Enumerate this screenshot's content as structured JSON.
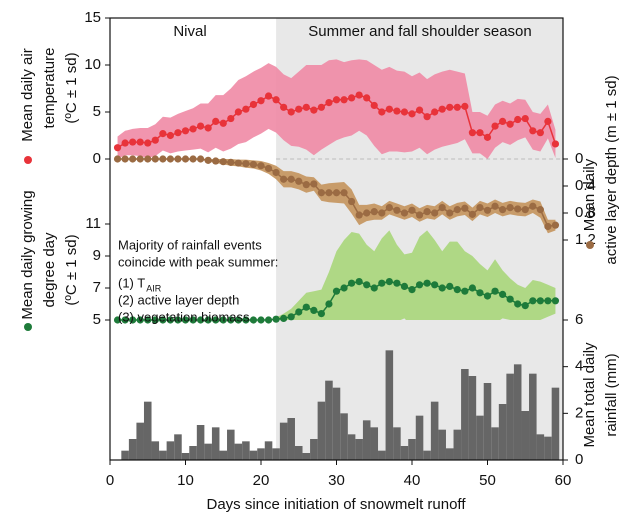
{
  "x_axis": {
    "label": "Days since initiation of snowmelt runoff",
    "xlim": [
      0,
      60
    ],
    "xticks": [
      0,
      10,
      20,
      30,
      40,
      50,
      60
    ]
  },
  "seasons": [
    {
      "label": "Nival"
    },
    {
      "label": "Summer and fall shoulder season",
      "from": 22
    }
  ],
  "annotation": {
    "lines": [
      "Majority of rainfall events",
      "coincide with peak summer:",
      "(1) T",
      "(2) active layer depth",
      "(3) vegetation biomass"
    ],
    "subscript": "AIR"
  },
  "chart_data": [
    {
      "type": "line",
      "axis_label": [
        "Mean daily air",
        "temperature",
        "(ºC ± 1 sd)"
      ],
      "side": "left",
      "color": "#e8333a",
      "band_color": "#f08aa5",
      "ylim": [
        0,
        15
      ],
      "yticks": [
        0,
        5,
        10,
        15
      ],
      "x": [
        1,
        2,
        3,
        4,
        5,
        6,
        7,
        8,
        9,
        10,
        11,
        12,
        13,
        14,
        15,
        16,
        17,
        18,
        19,
        20,
        21,
        22,
        23,
        24,
        25,
        26,
        27,
        28,
        29,
        30,
        31,
        32,
        33,
        34,
        35,
        36,
        37,
        38,
        39,
        40,
        41,
        42,
        43,
        44,
        45,
        46,
        47,
        48,
        49,
        50,
        51,
        52,
        53,
        54,
        55,
        56,
        57,
        58,
        59
      ],
      "values": [
        1.2,
        1.7,
        1.8,
        1.8,
        1.7,
        2,
        2.7,
        2.5,
        2.8,
        3,
        3.2,
        3.5,
        3.3,
        4,
        3.8,
        4.3,
        5,
        5.3,
        5.8,
        6.2,
        6.7,
        6.3,
        5.5,
        5,
        5.3,
        5.5,
        5.2,
        5.5,
        6,
        6.3,
        6.3,
        6.5,
        6.8,
        6.5,
        5.7,
        5,
        5.3,
        5.1,
        5,
        4.8,
        5.2,
        4.5,
        5,
        5.3,
        5.5,
        5.5,
        5.6,
        2.8,
        2.8,
        2.3,
        3.5,
        4,
        3.7,
        4.2,
        4.3,
        3,
        2.8,
        4,
        1.6
      ],
      "sd": [
        1.2,
        1.3,
        1.4,
        1.5,
        1.6,
        1.7,
        1.8,
        1.9,
        2,
        2.1,
        2.2,
        2.4,
        2.6,
        2.8,
        3,
        3.2,
        3.4,
        3.5,
        3.5,
        3.5,
        3.5,
        3.5,
        3.5,
        3.6,
        4,
        4.5,
        4.8,
        4.5,
        4.5,
        4.3,
        4,
        4,
        3.8,
        4,
        4.3,
        4.5,
        4.5,
        4.3,
        4.3,
        4,
        4,
        4,
        4,
        4,
        4,
        3.8,
        3.5,
        2.2,
        2.2,
        2.3,
        2.3,
        2.2,
        2.2,
        2.2,
        2,
        2,
        2,
        1.8,
        1.5
      ]
    },
    {
      "type": "line",
      "axis_label": [
        "Mean daily",
        "active layer depth (m ± 1 sd)"
      ],
      "side": "right",
      "color": "#9b6b43",
      "band_color": "#c4935c",
      "ylim": [
        1.2,
        0
      ],
      "yticks": [
        0,
        0.4,
        0.8,
        1.2
      ],
      "x": [
        1,
        2,
        3,
        4,
        5,
        6,
        7,
        8,
        9,
        10,
        11,
        12,
        13,
        14,
        15,
        16,
        17,
        18,
        19,
        20,
        21,
        22,
        23,
        24,
        25,
        26,
        27,
        28,
        29,
        30,
        31,
        32,
        33,
        34,
        35,
        36,
        37,
        38,
        39,
        40,
        41,
        42,
        43,
        44,
        45,
        46,
        47,
        48,
        49,
        50,
        51,
        52,
        53,
        54,
        55,
        56,
        57,
        58,
        59
      ],
      "values": [
        0,
        0,
        0,
        0,
        0,
        0,
        0,
        0,
        0,
        0,
        0,
        0,
        0.02,
        0.03,
        0.04,
        0.05,
        0.06,
        0.07,
        0.08,
        0.1,
        0.14,
        0.2,
        0.3,
        0.3,
        0.33,
        0.38,
        0.37,
        0.5,
        0.5,
        0.5,
        0.5,
        0.63,
        0.83,
        0.8,
        0.78,
        0.8,
        0.72,
        0.76,
        0.8,
        0.76,
        0.83,
        0.78,
        0.8,
        0.72,
        0.8,
        0.75,
        0.73,
        0.82,
        0.72,
        0.76,
        0.7,
        0.75,
        0.72,
        0.74,
        0.75,
        0.7,
        0.75,
        1.0,
        0.98
      ],
      "sd": [
        0.01,
        0.01,
        0.01,
        0.01,
        0.01,
        0.01,
        0.01,
        0.01,
        0.01,
        0.01,
        0.01,
        0.01,
        0.02,
        0.03,
        0.04,
        0.05,
        0.05,
        0.06,
        0.06,
        0.07,
        0.08,
        0.1,
        0.12,
        0.12,
        0.12,
        0.12,
        0.1,
        0.12,
        0.14,
        0.15,
        0.16,
        0.18,
        0.15,
        0.12,
        0.12,
        0.1,
        0.1,
        0.1,
        0.1,
        0.1,
        0.1,
        0.1,
        0.1,
        0.1,
        0.1,
        0.1,
        0.1,
        0.1,
        0.1,
        0.1,
        0.1,
        0.1,
        0.1,
        0.1,
        0.1,
        0.1,
        0.12,
        0.1,
        0.08
      ]
    },
    {
      "type": "line",
      "axis_label": [
        "Mean daily growing",
        "degree day",
        "(ºC  ± 1 sd)"
      ],
      "side": "left",
      "color": "#1e7b3a",
      "band_color": "#a8d67a",
      "ylim": [
        5,
        11
      ],
      "yticks": [
        5,
        7,
        9,
        11
      ],
      "x": [
        1,
        2,
        3,
        4,
        5,
        6,
        7,
        8,
        9,
        10,
        11,
        12,
        13,
        14,
        15,
        16,
        17,
        18,
        19,
        20,
        21,
        22,
        23,
        24,
        25,
        26,
        27,
        28,
        29,
        30,
        31,
        32,
        33,
        34,
        35,
        36,
        37,
        38,
        39,
        40,
        41,
        42,
        43,
        44,
        45,
        46,
        47,
        48,
        49,
        50,
        51,
        52,
        53,
        54,
        55,
        56,
        57,
        58,
        59
      ],
      "values": [
        5,
        5,
        5,
        5,
        5,
        5,
        5,
        5,
        5,
        5,
        5,
        5,
        5,
        5,
        5,
        5,
        5,
        5,
        5,
        5,
        5,
        5.05,
        5.1,
        5.2,
        5.5,
        5.8,
        5.6,
        5.4,
        6,
        6.8,
        7,
        7.3,
        7.4,
        7.2,
        7,
        7.3,
        7.4,
        7.3,
        7.1,
        6.9,
        7.2,
        7.3,
        7.2,
        7,
        7.1,
        6.9,
        6.8,
        7,
        6.7,
        6.5,
        6.8,
        6.6,
        6.3,
        6,
        5.9,
        6.2,
        6.2,
        6.2,
        6.2
      ],
      "sd": [
        0,
        0,
        0,
        0,
        0,
        0,
        0,
        0,
        0,
        0,
        0,
        0,
        0,
        0,
        0,
        0,
        0,
        0,
        0,
        0,
        0,
        0.1,
        0.3,
        0.5,
        0.7,
        0.9,
        1.2,
        1.5,
        2,
        2.5,
        3,
        3.2,
        3,
        2.5,
        2.3,
        2.8,
        3.2,
        2.4,
        2,
        2.3,
        3,
        3.3,
        2.8,
        2.3,
        2.8,
        3,
        2.5,
        2,
        1.8,
        1.6,
        2,
        1.5,
        1.3,
        1.2,
        1.1,
        1.3,
        1.2,
        1,
        0.8
      ]
    },
    {
      "type": "bar",
      "axis_label": [
        "Mean total daily",
        "rainfall (mm)"
      ],
      "side": "right",
      "color": "#666666",
      "ylim": [
        0,
        6
      ],
      "yticks": [
        0,
        2,
        4,
        6
      ],
      "x": [
        1,
        2,
        3,
        4,
        5,
        6,
        7,
        8,
        9,
        10,
        11,
        12,
        13,
        14,
        15,
        16,
        17,
        18,
        19,
        20,
        21,
        22,
        23,
        24,
        25,
        26,
        27,
        28,
        29,
        30,
        31,
        32,
        33,
        34,
        35,
        36,
        37,
        38,
        39,
        40,
        41,
        42,
        43,
        44,
        45,
        46,
        47,
        48,
        49,
        50,
        51,
        52,
        53,
        54,
        55,
        56,
        57,
        58,
        59
      ],
      "values": [
        0,
        0.4,
        0.9,
        1.6,
        2.5,
        0.8,
        0.4,
        0.8,
        1.1,
        0.3,
        0.6,
        1.5,
        0.7,
        1.4,
        0.4,
        1.3,
        0.7,
        0.8,
        0.4,
        0.5,
        0.8,
        0.5,
        1.6,
        1.8,
        0.6,
        0.3,
        0.9,
        2.5,
        3.4,
        3.1,
        2,
        1.1,
        0.9,
        1.7,
        1.4,
        0.4,
        4.7,
        1.4,
        0.6,
        0.9,
        1.9,
        0.4,
        2.5,
        1.3,
        0.5,
        1.3,
        3.9,
        3.6,
        1.9,
        3.3,
        1.4,
        2.4,
        3.7,
        4.1,
        2.1,
        3.7,
        1.1,
        1,
        3.1
      ]
    }
  ]
}
